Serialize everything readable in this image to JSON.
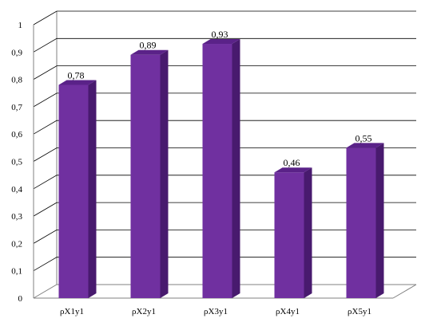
{
  "chart_data": {
    "type": "bar",
    "title": "",
    "xlabel": "",
    "ylabel": "",
    "categories": [
      "ρX1y1",
      "ρX2y1",
      "ρX3y1",
      "ρX4y1",
      "ρX5y1"
    ],
    "values": [
      0.78,
      0.89,
      0.93,
      0.46,
      0.55
    ],
    "data_labels": [
      "0,78",
      "0,89",
      "0,93",
      "0,46",
      "0,55"
    ],
    "ylim": [
      0,
      1
    ],
    "yticks": [
      0,
      0.1,
      0.2,
      0.3,
      0.4,
      0.5,
      0.6,
      0.7,
      0.8,
      0.9,
      1
    ],
    "ytick_labels": [
      "0",
      "0,1",
      "0,2",
      "0,3",
      "0,4",
      "0,5",
      "0,6",
      "0,7",
      "0,8",
      "0,9",
      "1"
    ],
    "grid": true,
    "three_d": true,
    "legend": "none",
    "colors": {
      "bar_front": "#7030a0",
      "bar_top": "#5a2288",
      "bar_side": "#481a6e",
      "gridline": "#000000",
      "axis": "#808080"
    }
  }
}
